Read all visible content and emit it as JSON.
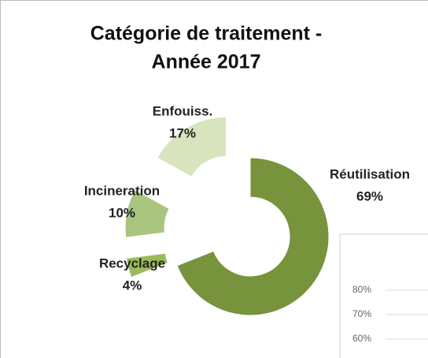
{
  "chart_data": [
    {
      "type": "donut",
      "title": [
        "Catégorie de traitement -",
        "Année 2017"
      ],
      "categories": [
        "Réutilisation",
        "Recyclage",
        "Incineration",
        "Enfouiss."
      ],
      "values": [
        69,
        4,
        10,
        17
      ],
      "value_labels": [
        "69%",
        "4%",
        "10%",
        "17%"
      ],
      "colors": [
        "#77933c",
        "#9bbb59",
        "#a9c47f",
        "#d7e4bd"
      ]
    },
    {
      "type": "line",
      "ylim": [
        50,
        100
      ],
      "yticks": [
        {
          "value": 80,
          "label": "80%"
        },
        {
          "value": 70,
          "label": "70%"
        },
        {
          "value": 60,
          "label": "60%"
        }
      ],
      "grid": true
    }
  ]
}
